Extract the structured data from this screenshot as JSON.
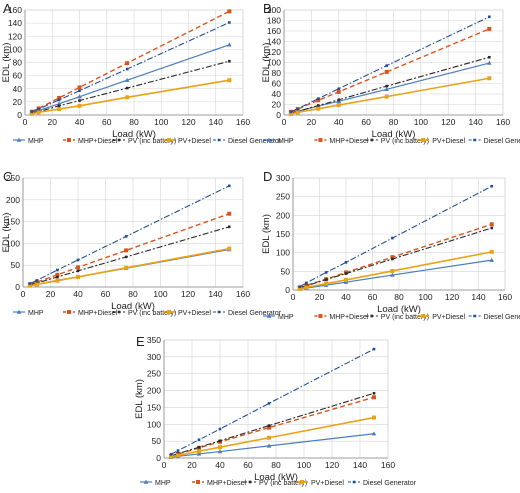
{
  "colors": {
    "MHP": "#4a7ebb",
    "MHP+Diesel": "#d9541e",
    "PV (inc battery)": "#2a2a2a",
    "PV+Diesel": "#e8a317",
    "Diesel Generator": "#1f4e9c"
  },
  "chart_data": [
    {
      "type": "line",
      "panel": "A",
      "xlabel": "Load (kW)",
      "ylabel": "EDL (km)",
      "xlim": [
        0,
        160
      ],
      "ylim": [
        0,
        160
      ],
      "xticks": [
        0,
        20,
        40,
        60,
        80,
        100,
        120,
        140,
        160
      ],
      "yticks": [
        0,
        20,
        40,
        60,
        80,
        100,
        120,
        140,
        160
      ],
      "grid": true,
      "legend_position": "bottom",
      "x": [
        5,
        10,
        25,
        40,
        75,
        150
      ],
      "series": [
        {
          "name": "MHP",
          "values": [
            4,
            7,
            17,
            28,
            53,
            107
          ]
        },
        {
          "name": "MHP+Diesel",
          "values": [
            5,
            10,
            26,
            42,
            79,
            158
          ]
        },
        {
          "name": "PV (inc battery)",
          "values": [
            3,
            5,
            14,
            22,
            41,
            82
          ]
        },
        {
          "name": "PV+Diesel",
          "values": [
            2,
            4,
            9,
            14,
            27,
            53
          ]
        },
        {
          "name": "Diesel Generator",
          "values": [
            5,
            9,
            23,
            37,
            70,
            141
          ]
        }
      ]
    },
    {
      "type": "line",
      "panel": "B",
      "xlabel": "Load (kW)",
      "ylabel": "EDL (km)",
      "xlim": [
        0,
        160
      ],
      "ylim": [
        0,
        200
      ],
      "xticks": [
        0,
        20,
        40,
        60,
        80,
        100,
        120,
        140,
        160
      ],
      "yticks": [
        0,
        20,
        40,
        60,
        80,
        100,
        120,
        140,
        160,
        180,
        200
      ],
      "grid": true,
      "legend_position": "bottom",
      "x": [
        5,
        10,
        25,
        40,
        75,
        150
      ],
      "series": [
        {
          "name": "MHP",
          "values": [
            3,
            7,
            17,
            26,
            49,
            99
          ]
        },
        {
          "name": "MHP+Diesel",
          "values": [
            6,
            11,
            28,
            44,
            82,
            164
          ]
        },
        {
          "name": "PV (inc battery)",
          "values": [
            4,
            7,
            18,
            29,
            55,
            110
          ]
        },
        {
          "name": "PV+Diesel",
          "values": [
            2,
            5,
            12,
            19,
            35,
            70
          ]
        },
        {
          "name": "Diesel Generator",
          "values": [
            6,
            12,
            31,
            50,
            94,
            187
          ]
        }
      ]
    },
    {
      "type": "line",
      "panel": "C",
      "xlabel": "Load (kW)",
      "ylabel": "EDL (km)",
      "xlim": [
        0,
        160
      ],
      "ylim": [
        0,
        250
      ],
      "xticks": [
        0,
        20,
        40,
        60,
        80,
        100,
        120,
        140,
        160
      ],
      "yticks": [
        0,
        50,
        100,
        150,
        200,
        250
      ],
      "grid": true,
      "legend_position": "bottom",
      "x": [
        5,
        10,
        25,
        40,
        75,
        150
      ],
      "series": [
        {
          "name": "MHP",
          "values": [
            3,
            6,
            14,
            23,
            43,
            86
          ]
        },
        {
          "name": "MHP+Diesel",
          "values": [
            6,
            11,
            28,
            45,
            84,
            168
          ]
        },
        {
          "name": "PV (inc battery)",
          "values": [
            5,
            9,
            23,
            37,
            69,
            138
          ]
        },
        {
          "name": "PV+Diesel",
          "values": [
            3,
            6,
            15,
            23,
            44,
            88
          ]
        },
        {
          "name": "Diesel Generator",
          "values": [
            8,
            15,
            39,
            62,
            116,
            232
          ]
        }
      ]
    },
    {
      "type": "line",
      "panel": "D",
      "xlabel": "Load (kW)",
      "ylabel": "EDL (km)",
      "xlim": [
        0,
        160
      ],
      "ylim": [
        0,
        300
      ],
      "xticks": [
        0,
        20,
        40,
        60,
        80,
        100,
        120,
        140,
        160
      ],
      "yticks": [
        0,
        50,
        100,
        150,
        200,
        250,
        300
      ],
      "grid": true,
      "legend_position": "bottom",
      "x": [
        5,
        10,
        25,
        40,
        75,
        150
      ],
      "series": [
        {
          "name": "MHP",
          "values": [
            3,
            5,
            13,
            21,
            40,
            80
          ]
        },
        {
          "name": "MHP+Diesel",
          "values": [
            6,
            12,
            29,
            47,
            88,
            176
          ]
        },
        {
          "name": "PV (inc battery)",
          "values": [
            6,
            11,
            28,
            44,
            83,
            166
          ]
        },
        {
          "name": "PV+Diesel",
          "values": [
            3,
            7,
            17,
            27,
            51,
            102
          ]
        },
        {
          "name": "Diesel Generator",
          "values": [
            9,
            19,
            47,
            74,
            139,
            278
          ]
        }
      ]
    },
    {
      "type": "line",
      "panel": "E",
      "xlabel": "Load (kW)",
      "ylabel": "EDL (km)",
      "xlim": [
        0,
        160
      ],
      "ylim": [
        0,
        350
      ],
      "xticks": [
        0,
        20,
        40,
        60,
        80,
        100,
        120,
        140,
        160
      ],
      "yticks": [
        0,
        50,
        100,
        150,
        200,
        250,
        300,
        350
      ],
      "grid": true,
      "legend_position": "bottom",
      "x": [
        5,
        10,
        25,
        40,
        75,
        150
      ],
      "series": [
        {
          "name": "MHP",
          "values": [
            2,
            5,
            12,
            19,
            36,
            72
          ]
        },
        {
          "name": "MHP+Diesel",
          "values": [
            6,
            12,
            30,
            48,
            90,
            180
          ]
        },
        {
          "name": "PV (inc battery)",
          "values": [
            6,
            13,
            32,
            51,
            96,
            192
          ]
        },
        {
          "name": "PV+Diesel",
          "values": [
            4,
            8,
            20,
            32,
            60,
            120
          ]
        },
        {
          "name": "Diesel Generator",
          "values": [
            11,
            22,
            54,
            86,
            162,
            323
          ]
        }
      ]
    }
  ]
}
